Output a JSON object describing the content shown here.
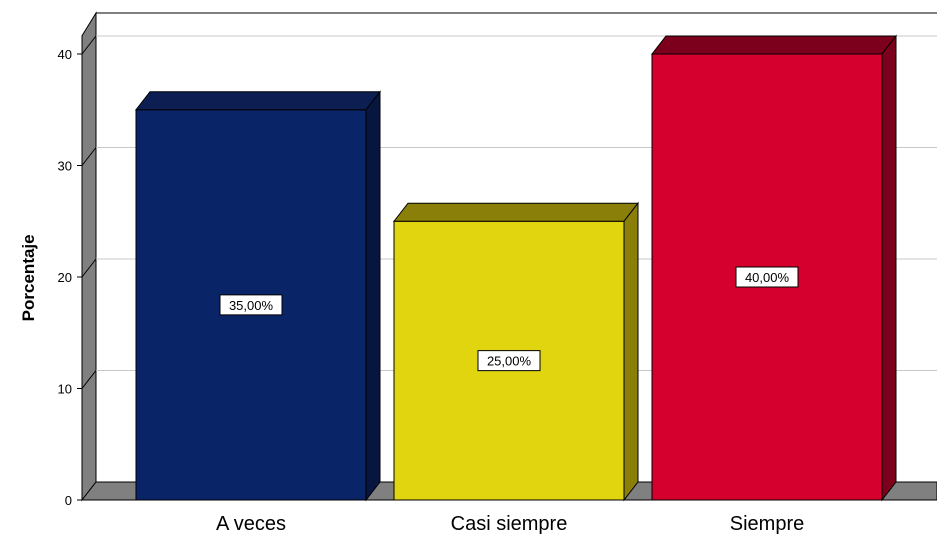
{
  "chart_data": {
    "type": "bar",
    "style": "3d",
    "categories": [
      "A veces",
      "Casi siempre",
      "Siempre"
    ],
    "values": [
      35,
      25,
      40
    ],
    "data_labels": [
      "35,00%",
      "25,00%",
      "40,00%"
    ],
    "colors": [
      "#0a2468",
      "#e0d50f",
      "#d6002e"
    ],
    "side_colors": [
      "#06163f",
      "#8a7f09",
      "#7c001b"
    ],
    "top_colors": [
      "#0c1e52",
      "#8a7f09",
      "#7c001b"
    ],
    "ylabel": "Porcentaje",
    "xlabel": "",
    "yticks": [
      0,
      10,
      20,
      30,
      40
    ],
    "ylim": [
      0,
      42
    ],
    "grid": true,
    "wall_color": "#808080",
    "gridline_color": "#c8c8c8"
  }
}
